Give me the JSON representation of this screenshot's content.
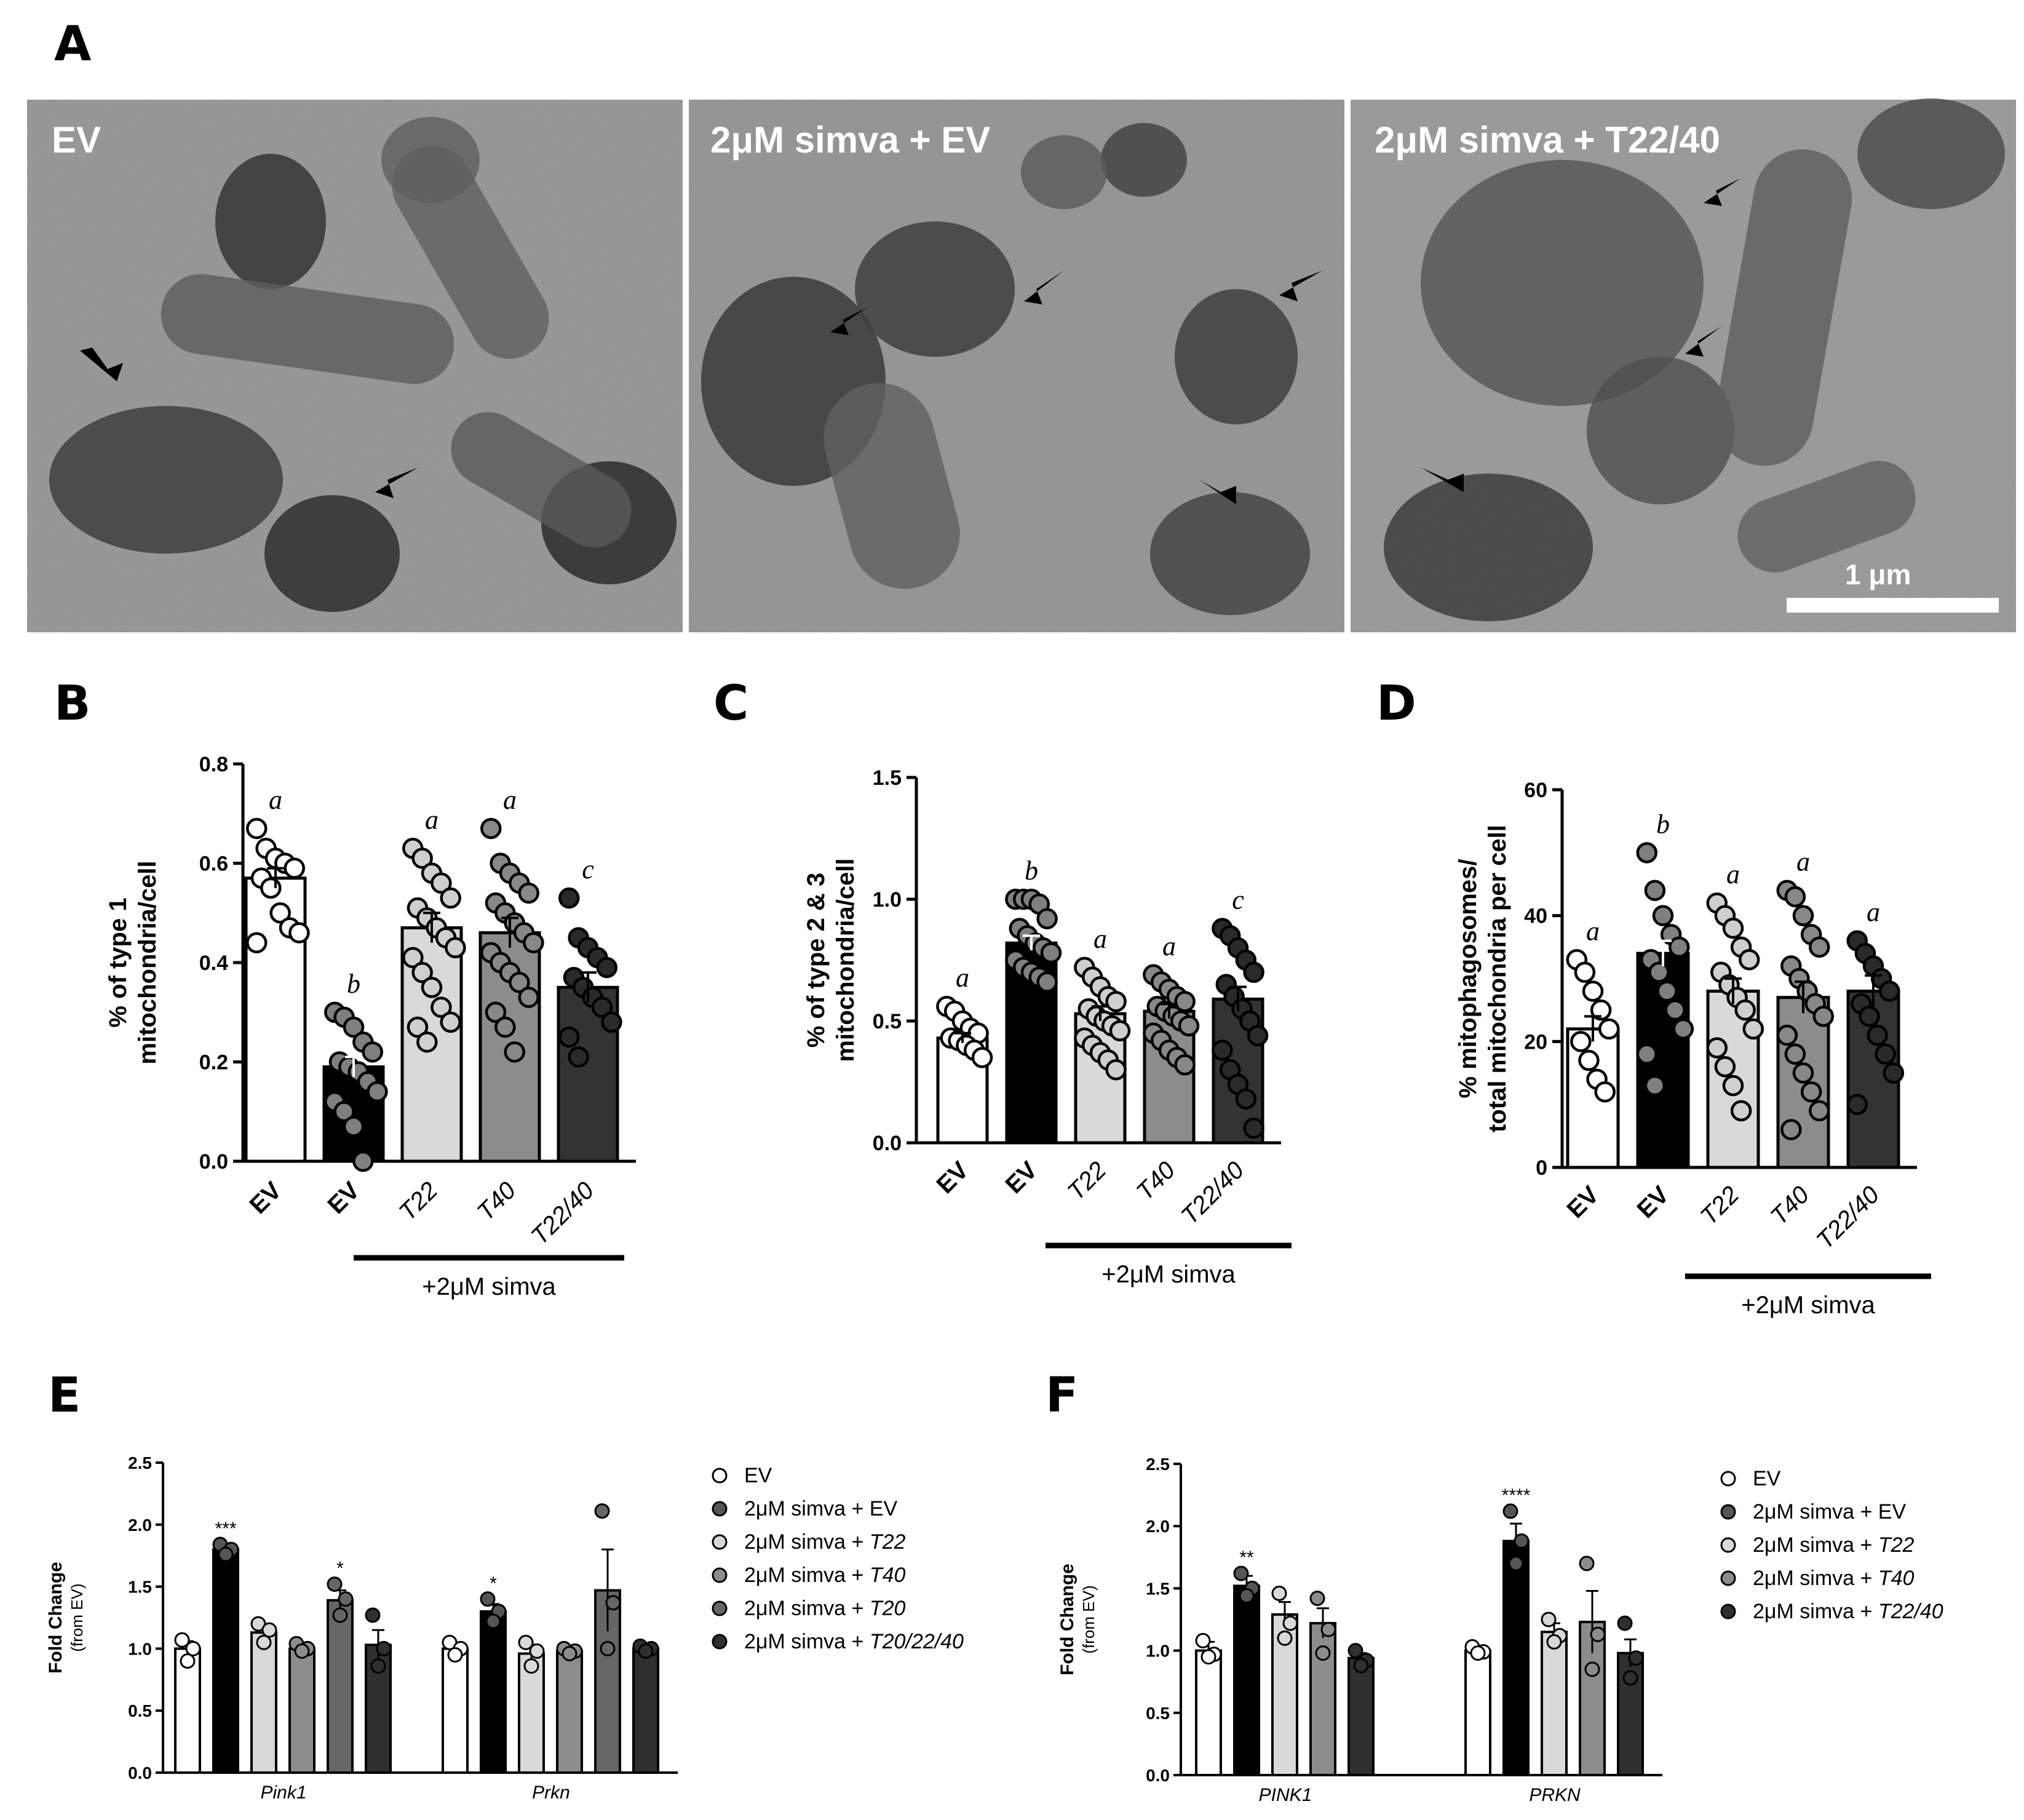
{
  "panel_labels": {
    "a": "A",
    "b": "B",
    "c": "C",
    "d": "D",
    "e": "E",
    "f": "F"
  },
  "micrographs": {
    "labels": [
      "EV",
      "2μM simva + EV",
      "2μM simva + T22/40"
    ],
    "scale_bar": "1 μm"
  },
  "chart_data": [
    {
      "id": "B",
      "type": "bar",
      "ylabel": "% of type 1\nmitochondria/cell",
      "ylim": [
        0,
        0.8
      ],
      "yticks": [
        "0.0",
        "0.2",
        "0.4",
        "0.6",
        "0.8"
      ],
      "categories": [
        "EV",
        "EV",
        "T22",
        "T40",
        "T22/40"
      ],
      "values": [
        0.57,
        0.19,
        0.47,
        0.46,
        0.35
      ],
      "sem": [
        0.02,
        0.02,
        0.03,
        0.03,
        0.03
      ],
      "letters": [
        "a",
        "b",
        "a",
        "a",
        "c"
      ],
      "bar_colors": [
        "#ffffff",
        "#000000",
        "#d9d9d9",
        "#8c8c8c",
        "#333333"
      ],
      "point_colors": [
        "#ffffff",
        "#7f7f7f",
        "#cfcfcf",
        "#888888",
        "#2a2a2a"
      ],
      "points": [
        [
          0.67,
          0.63,
          0.61,
          0.6,
          0.59,
          0.57,
          0.55,
          0.5,
          0.47,
          0.46,
          0.44
        ],
        [
          0.3,
          0.29,
          0.27,
          0.24,
          0.22,
          0.2,
          0.19,
          0.18,
          0.16,
          0.14,
          0.12,
          0.1,
          0.07,
          0.0
        ],
        [
          0.63,
          0.61,
          0.58,
          0.56,
          0.53,
          0.51,
          0.49,
          0.47,
          0.45,
          0.43,
          0.41,
          0.38,
          0.35,
          0.31,
          0.28,
          0.27,
          0.24
        ],
        [
          0.67,
          0.6,
          0.58,
          0.56,
          0.54,
          0.52,
          0.5,
          0.48,
          0.46,
          0.44,
          0.42,
          0.4,
          0.38,
          0.36,
          0.33,
          0.3,
          0.27,
          0.22
        ],
        [
          0.53,
          0.45,
          0.43,
          0.41,
          0.39,
          0.37,
          0.35,
          0.33,
          0.31,
          0.28,
          0.25,
          0.21
        ]
      ],
      "group_label": "+2μM simva"
    },
    {
      "id": "C",
      "type": "bar",
      "ylabel": "% of type 2 & 3\nmitochondria/cell",
      "ylim": [
        0,
        1.5
      ],
      "yticks": [
        "0.0",
        "0.5",
        "1.0",
        "1.5"
      ],
      "categories": [
        "EV",
        "EV",
        "T22",
        "T40",
        "T22/40"
      ],
      "values": [
        0.43,
        0.82,
        0.53,
        0.54,
        0.59
      ],
      "sem": [
        0.02,
        0.03,
        0.03,
        0.03,
        0.05
      ],
      "letters": [
        "a",
        "b",
        "a",
        "a",
        "c"
      ],
      "bar_colors": [
        "#ffffff",
        "#000000",
        "#d9d9d9",
        "#8c8c8c",
        "#333333"
      ],
      "point_colors": [
        "#ffffff",
        "#7f7f7f",
        "#cfcfcf",
        "#888888",
        "#2a2a2a"
      ],
      "points": [
        [
          0.56,
          0.54,
          0.5,
          0.47,
          0.45,
          0.43,
          0.42,
          0.4,
          0.38,
          0.35
        ],
        [
          1.0,
          1.0,
          1.0,
          0.98,
          0.92,
          0.88,
          0.85,
          0.82,
          0.8,
          0.78,
          0.75,
          0.72,
          0.7,
          0.68,
          0.66
        ],
        [
          0.72,
          0.68,
          0.64,
          0.6,
          0.58,
          0.55,
          0.52,
          0.5,
          0.48,
          0.46,
          0.43,
          0.4,
          0.37,
          0.34,
          0.3
        ],
        [
          0.69,
          0.66,
          0.63,
          0.6,
          0.58,
          0.56,
          0.54,
          0.52,
          0.5,
          0.48,
          0.45,
          0.42,
          0.38,
          0.35,
          0.32
        ],
        [
          0.88,
          0.85,
          0.8,
          0.75,
          0.7,
          0.65,
          0.6,
          0.55,
          0.5,
          0.44,
          0.38,
          0.3,
          0.24,
          0.18,
          0.06
        ]
      ],
      "group_label": "+2μM simva"
    },
    {
      "id": "D",
      "type": "bar",
      "ylabel": "% mitophagosomes/\ntotal mitochondria per cell",
      "ylim": [
        0,
        60
      ],
      "yticks": [
        "0",
        "20",
        "40",
        "60"
      ],
      "categories": [
        "EV",
        "EV",
        "T22",
        "T40",
        "T22/40"
      ],
      "values": [
        22,
        34,
        28,
        27,
        28
      ],
      "sem": [
        2,
        2,
        2,
        2.5,
        2.5
      ],
      "letters": [
        "a",
        "b",
        "a",
        "a",
        "a"
      ],
      "bar_colors": [
        "#ffffff",
        "#000000",
        "#d9d9d9",
        "#8c8c8c",
        "#333333"
      ],
      "point_colors": [
        "#ffffff",
        "#7f7f7f",
        "#cfcfcf",
        "#888888",
        "#2a2a2a"
      ],
      "points": [
        [
          33,
          31,
          28,
          25,
          22,
          20,
          17,
          14,
          12
        ],
        [
          50,
          44,
          40,
          37,
          35,
          33,
          31,
          28,
          25,
          22,
          18,
          13
        ],
        [
          42,
          40,
          38,
          35,
          33,
          31,
          29,
          27,
          25,
          22,
          19,
          16,
          13,
          9
        ],
        [
          44,
          43,
          40,
          37,
          35,
          32,
          30,
          28,
          26,
          24,
          21,
          18,
          15,
          12,
          9,
          6
        ],
        [
          36,
          34,
          32,
          30,
          28,
          26,
          24,
          21,
          18,
          15,
          10
        ]
      ],
      "group_label": "+2μM simva"
    },
    {
      "id": "E",
      "type": "bar",
      "ylabel": "Fold Change",
      "ylabel2": "(from EV)",
      "ylim": [
        0,
        2.5
      ],
      "yticks": [
        "0.0",
        "0.5",
        "1.0",
        "1.5",
        "2.0",
        "2.5"
      ],
      "groups": [
        "Pink1",
        "Prkn"
      ],
      "series": [
        {
          "name": "EV",
          "color": "#ffffff",
          "values": [
            1.0,
            1.0
          ],
          "sem": [
            0.06,
            0.04
          ],
          "points": [
            [
              1.07,
              1.0,
              0.9
            ],
            [
              1.05,
              1.0,
              0.95
            ]
          ],
          "stars": [
            "",
            ""
          ]
        },
        {
          "name": "2μM simva + EV",
          "color": "#000000",
          "values": [
            1.8,
            1.3
          ],
          "sem": [
            0.03,
            0.06
          ],
          "points": [
            [
              1.84,
              1.8,
              1.76
            ],
            [
              1.4,
              1.3,
              1.22
            ]
          ],
          "stars": [
            "***",
            "*"
          ]
        },
        {
          "name": "2μM simva + T22",
          "color": "#d9d9d9",
          "values": [
            1.13,
            0.96
          ],
          "sem": [
            0.06,
            0.07
          ],
          "points": [
            [
              1.2,
              1.15,
              1.05
            ],
            [
              1.05,
              0.98,
              0.86
            ]
          ],
          "stars": [
            "",
            ""
          ]
        },
        {
          "name": "2μM simva + T40",
          "color": "#8c8c8c",
          "values": [
            1.0,
            0.98
          ],
          "sem": [
            0.03,
            0.03
          ],
          "points": [
            [
              1.04,
              1.0,
              0.98
            ],
            [
              1.0,
              0.98,
              0.96
            ]
          ],
          "stars": [
            "",
            ""
          ]
        },
        {
          "name": "2μM simva + T20",
          "color": "#666666",
          "values": [
            1.39,
            1.47
          ],
          "sem": [
            0.08,
            0.33
          ],
          "points": [
            [
              1.52,
              1.4,
              1.27
            ],
            [
              2.11,
              1.37,
              1.0
            ]
          ],
          "stars": [
            "*",
            ""
          ]
        },
        {
          "name": "2μM simva + T20/22/40",
          "color": "#2f2f2f",
          "values": [
            1.03,
            1.0
          ],
          "sem": [
            0.12,
            0.02
          ],
          "points": [
            [
              1.27,
              1.0,
              0.86
            ],
            [
              1.02,
              1.0,
              0.98
            ]
          ],
          "stars": [
            "",
            ""
          ]
        }
      ],
      "legend": [
        {
          "prefix": "EV",
          "italic": ""
        },
        {
          "prefix": "2μM simva + EV",
          "italic": ""
        },
        {
          "prefix": "2μM simva + ",
          "italic": "T22"
        },
        {
          "prefix": "2μM simva + ",
          "italic": "T40"
        },
        {
          "prefix": "2μM simva + ",
          "italic": "T20"
        },
        {
          "prefix": "2μM simva + ",
          "italic": "T20/22/40"
        }
      ]
    },
    {
      "id": "F",
      "type": "bar",
      "ylabel": "Fold Change",
      "ylabel2": "(from EV)",
      "ylim": [
        0,
        2.5
      ],
      "yticks": [
        "0.0",
        "0.5",
        "1.0",
        "1.5",
        "2.0",
        "2.5"
      ],
      "groups": [
        "PINK1",
        "PRKN"
      ],
      "series": [
        {
          "name": "EV",
          "color": "#ffffff",
          "values": [
            1.0,
            1.0
          ],
          "sem": [
            0.07,
            0.03
          ],
          "points": [
            [
              1.08,
              0.97,
              0.95
            ],
            [
              1.03,
              0.99,
              0.98
            ]
          ],
          "stars": [
            "",
            ""
          ]
        },
        {
          "name": "2μM simva + EV",
          "color": "#000000",
          "values": [
            1.52,
            1.88
          ],
          "sem": [
            0.08,
            0.14
          ],
          "points": [
            [
              1.62,
              1.5,
              1.44
            ],
            [
              2.12,
              1.88,
              1.7
            ]
          ],
          "stars": [
            "**",
            "****"
          ]
        },
        {
          "name": "2μM simva + T22",
          "color": "#d9d9d9",
          "values": [
            1.29,
            1.15
          ],
          "sem": [
            0.1,
            0.07
          ],
          "points": [
            [
              1.46,
              1.22,
              1.1
            ],
            [
              1.25,
              1.12,
              1.07
            ]
          ],
          "stars": [
            "",
            ""
          ]
        },
        {
          "name": "2μM simva + T40",
          "color": "#8c8c8c",
          "values": [
            1.22,
            1.23
          ],
          "sem": [
            0.12,
            0.25
          ],
          "points": [
            [
              1.42,
              1.17,
              0.98
            ],
            [
              1.7,
              1.13,
              0.85
            ]
          ],
          "stars": [
            "",
            ""
          ]
        },
        {
          "name": "2μM simva + T22/40",
          "color": "#2f2f2f",
          "values": [
            0.94,
            0.98
          ],
          "sem": [
            0.04,
            0.11
          ],
          "points": [
            [
              1.0,
              0.92,
              0.88
            ],
            [
              1.22,
              0.94,
              0.78
            ]
          ],
          "stars": [
            "",
            ""
          ]
        }
      ],
      "legend": [
        {
          "prefix": "EV",
          "italic": ""
        },
        {
          "prefix": "2μM simva + EV",
          "italic": ""
        },
        {
          "prefix": "2μM simva + ",
          "italic": "T22"
        },
        {
          "prefix": "2μM simva + ",
          "italic": "T40"
        },
        {
          "prefix": "2μM simva + ",
          "italic": "T22/40"
        }
      ]
    }
  ]
}
